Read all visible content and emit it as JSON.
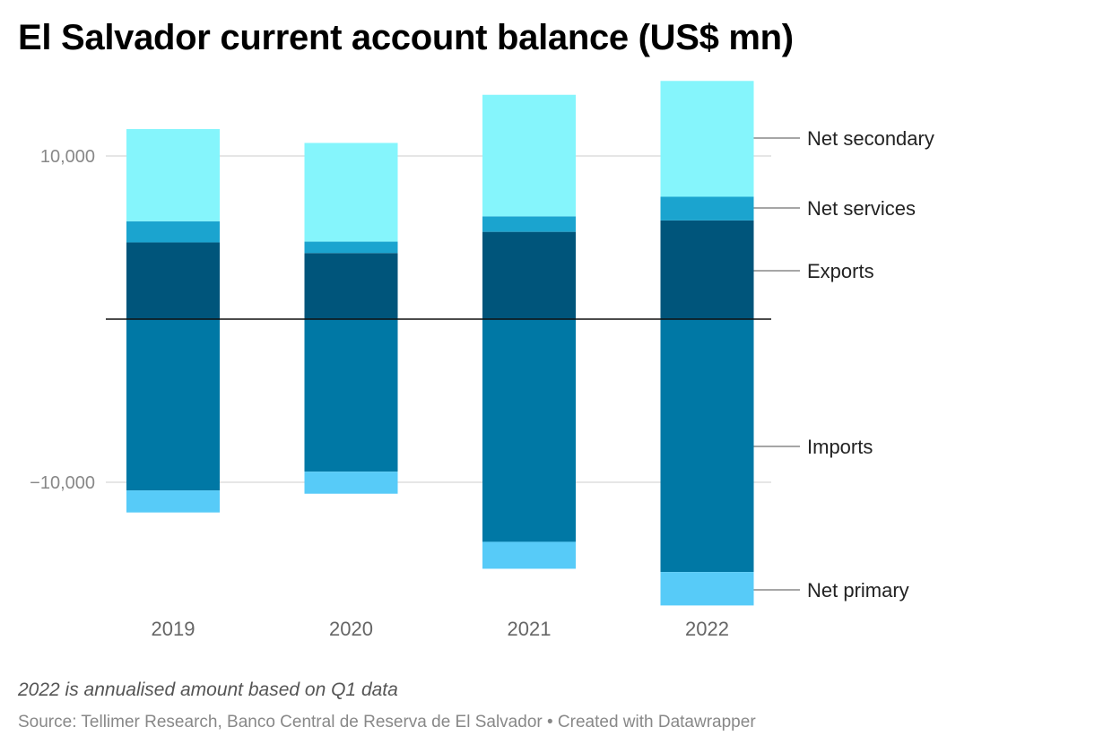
{
  "title": "El Salvador current account balance (US$ mn)",
  "note": "2022 is annualised amount based on Q1 data",
  "source": "Source: Tellimer Research, Banco Central de Reserva de El Salvador • Created with Datawrapper",
  "colors": {
    "Exports": "#00557b",
    "Net services": "#1ba4cf",
    "Net secondary": "#85f5fc",
    "Imports": "#0078a5",
    "Net primary": "#57cbf8",
    "grid": "#dddddd",
    "zero": "#111111"
  },
  "chart_data": {
    "type": "bar",
    "stacked": true,
    "categories": [
      "2019",
      "2020",
      "2021",
      "2022"
    ],
    "series": [
      {
        "name": "Exports",
        "values": [
          4700,
          4050,
          5350,
          6050
        ]
      },
      {
        "name": "Net services",
        "values": [
          1300,
          700,
          950,
          1450
        ]
      },
      {
        "name": "Net secondary",
        "values": [
          5650,
          6050,
          7450,
          7100
        ]
      },
      {
        "name": "Imports",
        "values": [
          -10500,
          -9350,
          -13650,
          -15500
        ]
      },
      {
        "name": "Net primary",
        "values": [
          -1350,
          -1350,
          -1650,
          -2050
        ]
      }
    ],
    "yticks": [
      10000,
      -10000
    ],
    "ytick_labels": [
      "10,000",
      "−10,000"
    ],
    "ylim": [
      -17500,
      15000
    ],
    "grid": true,
    "legend": "direct labels at right"
  }
}
